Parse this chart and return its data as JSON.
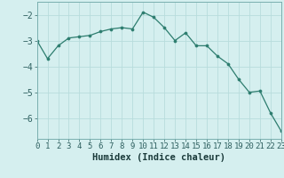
{
  "x": [
    0,
    1,
    2,
    3,
    4,
    5,
    6,
    7,
    8,
    9,
    10,
    11,
    12,
    13,
    14,
    15,
    16,
    17,
    18,
    19,
    20,
    21,
    22,
    23
  ],
  "y": [
    -3.0,
    -3.7,
    -3.2,
    -2.9,
    -2.85,
    -2.8,
    -2.65,
    -2.55,
    -2.5,
    -2.55,
    -1.9,
    -2.1,
    -2.5,
    -3.0,
    -2.7,
    -3.2,
    -3.2,
    -3.6,
    -3.9,
    -4.5,
    -5.0,
    -4.95,
    -5.8,
    -6.5
  ],
  "xlabel": "Humidex (Indice chaleur)",
  "xlim": [
    0,
    23
  ],
  "ylim": [
    -6.8,
    -1.5
  ],
  "yticks": [
    -6,
    -5,
    -4,
    -3,
    -2
  ],
  "xticks": [
    0,
    1,
    2,
    3,
    4,
    5,
    6,
    7,
    8,
    9,
    10,
    11,
    12,
    13,
    14,
    15,
    16,
    17,
    18,
    19,
    20,
    21,
    22,
    23
  ],
  "line_color": "#2d7d6f",
  "marker_color": "#2d7d6f",
  "bg_color": "#d5efef",
  "grid_color": "#b8dcdc",
  "spine_color": "#7aafaf",
  "tick_color": "#2d5f5f",
  "label_color": "#2d5f5f",
  "xlabel_color": "#1a3a3a",
  "tick_fontsize": 6.5,
  "xlabel_fontsize": 7.5
}
